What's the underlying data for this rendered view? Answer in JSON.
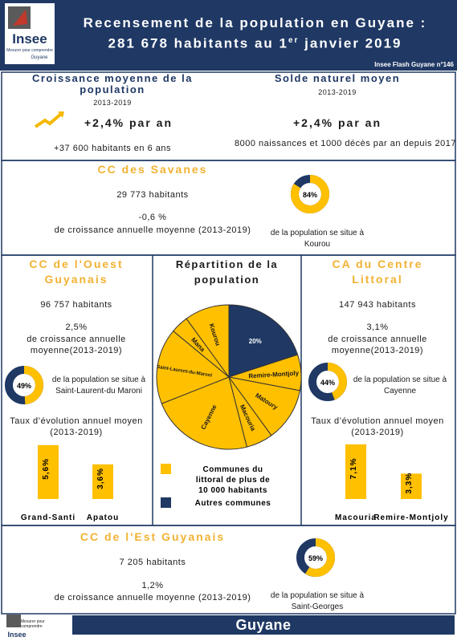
{
  "header": {
    "logo": "Insee",
    "logo_tagline": "Mesurer pour comprendre",
    "logo_region": "Guyane",
    "title_line1": "Recensement de la population en Guyane :",
    "title_line2": "281 678 habitants au 1",
    "title_sup": "er",
    "title_line3": " janvier 2019",
    "publication": "Insee Flash Guyane n°146"
  },
  "growth": {
    "title": "Croissance moyenne de la population",
    "period": "2013-2019",
    "rate": "+2,4% par an",
    "detail": "+37 600  habitants en 6 ans"
  },
  "natural": {
    "title": "Solde naturel moyen",
    "period": "2013-2019",
    "rate": "+2,4% par an",
    "detail": "8000 naissances et 1000 décès par an depuis 2017"
  },
  "savanes": {
    "title": "CC des Savanes",
    "population": "29 773 habitants",
    "growth": "-0,6 %",
    "growth_text": "de croissance annuelle moyenne (2013-2019)",
    "donut": {
      "value": 84,
      "label": "84%"
    },
    "donut_text": "de la population se situe à Kourou"
  },
  "ouest": {
    "title": "CC de l'Ouest Guyanais",
    "population": "96 757 habitants",
    "growth": "2,5%",
    "growth_text": "de croissance annuelle moyenne(2013-2019)",
    "donut": {
      "value": 49,
      "label": "49%"
    },
    "donut_text": "de la population se situe à Saint-Laurent-du Maroni",
    "bars": {
      "type": "bar",
      "title": "Taux d’évolution annuel moyen (2013-2019)",
      "categories": [
        "Grand-Santi",
        "Apatou"
      ],
      "values": [
        5.6,
        3.6
      ],
      "value_labels": [
        "5,6%",
        "3,6%"
      ],
      "color": "#ffc000",
      "ylim": [
        0,
        6
      ]
    }
  },
  "centre": {
    "title": "CA du Centre Littoral",
    "population": "147 943 habitants",
    "growth": "3,1%",
    "growth_text": "de croissance annuelle moyenne(2013-2019)",
    "donut": {
      "value": 44,
      "label": "44%"
    },
    "donut_text": "de la population se situe à Cayenne",
    "bars": {
      "type": "bar",
      "title": "Taux d’évolution annuel moyen (2013-2019)",
      "categories": [
        "Macouria",
        "Remire-Montjoly"
      ],
      "values": [
        7.1,
        3.3
      ],
      "value_labels": [
        "7,1%",
        "3,3%"
      ],
      "color": "#ffc000",
      "ylim": [
        0,
        7.5
      ]
    }
  },
  "repartition": {
    "title": "Répartition de la population",
    "pie": {
      "type": "pie",
      "slices": [
        {
          "label": "20%",
          "value": 20,
          "color": "#1f3864"
        },
        {
          "label": "Remire-Montjoly",
          "value": 8,
          "color": "#ffc000"
        },
        {
          "label": "Matoury",
          "value": 12,
          "color": "#ffc000"
        },
        {
          "label": "Macouria",
          "value": 6,
          "color": "#ffc000"
        },
        {
          "label": "Cayenne",
          "value": 23,
          "color": "#ffc000"
        },
        {
          "label": "Saint-Laurent-du-Maroni",
          "value": 17,
          "color": "#ffc000"
        },
        {
          "label": "Mana",
          "value": 4,
          "color": "#ffc000"
        },
        {
          "label": "Kourou",
          "value": 10,
          "color": "#ffc000"
        }
      ]
    },
    "legend": [
      {
        "label": "Communes du littoral de plus de 10 000 habitants",
        "color": "#ffc000"
      },
      {
        "label": "Autres communes",
        "color": "#1f3864"
      }
    ]
  },
  "est": {
    "title": "CC de l'Est Guyanais",
    "population": "7 205 habitants",
    "growth": "1,2%",
    "growth_text": "de croissance annuelle moyenne (2013-2019)",
    "donut": {
      "value": 59,
      "label": "59%"
    },
    "donut_text": "de la population se situe à Saint-Georges"
  },
  "footer": {
    "logo": "Insee",
    "logo_tagline": "Mesurer pour comprendre",
    "region": "Guyane"
  }
}
